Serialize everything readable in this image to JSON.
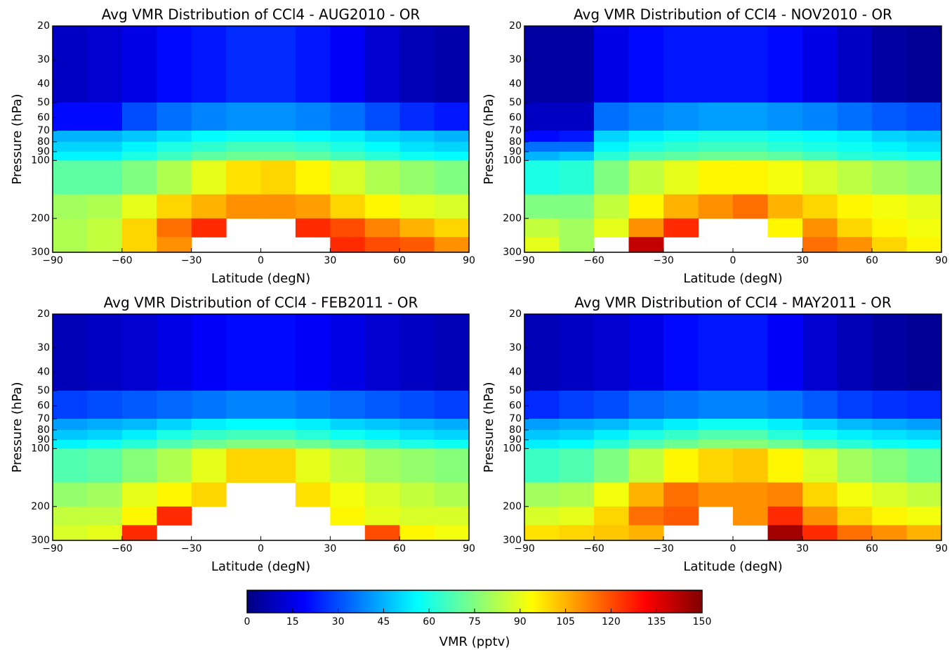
{
  "chart_data": [
    {
      "type": "heatmap",
      "title": "Avg VMR Distribution of CCl4 - AUG2010 - OR",
      "xlabel": "Latitude (degN)",
      "ylabel": "Pressure (hPa)",
      "x_bins": [
        -90,
        -75,
        -60,
        -45,
        -30,
        -15,
        0,
        15,
        30,
        45,
        60,
        75,
        90
      ],
      "y_bins": [
        20,
        50,
        70,
        80,
        90,
        100,
        150,
        200,
        250,
        300
      ],
      "values": [
        [
          10,
          12,
          15,
          20,
          22,
          25,
          25,
          22,
          18,
          12,
          8,
          6
        ],
        [
          20,
          20,
          30,
          35,
          38,
          40,
          40,
          38,
          35,
          30,
          25,
          22
        ],
        [
          45,
          45,
          48,
          52,
          56,
          58,
          58,
          56,
          54,
          50,
          48,
          45
        ],
        [
          50,
          50,
          55,
          60,
          63,
          66,
          66,
          64,
          60,
          56,
          52,
          50
        ],
        [
          55,
          55,
          60,
          65,
          70,
          72,
          72,
          70,
          66,
          62,
          58,
          56
        ],
        [
          70,
          70,
          75,
          82,
          90,
          98,
          100,
          95,
          88,
          82,
          78,
          75
        ],
        [
          80,
          82,
          90,
          100,
          105,
          110,
          110,
          108,
          100,
          95,
          90,
          88
        ],
        [
          82,
          85,
          100,
          115,
          125,
          null,
          null,
          125,
          120,
          112,
          105,
          100
        ],
        [
          82,
          85,
          100,
          110,
          null,
          null,
          null,
          null,
          125,
          120,
          118,
          110
        ]
      ],
      "xlim": [
        -90,
        90
      ],
      "ylim": [
        300,
        20
      ],
      "yscale": "log",
      "xticks": [
        {
          "value": -90,
          "label": "−90"
        },
        {
          "value": -60,
          "label": "−60"
        },
        {
          "value": -30,
          "label": "−30"
        },
        0,
        30,
        60,
        90
      ],
      "yticks": [
        20,
        30,
        40,
        50,
        60,
        70,
        80,
        90,
        100,
        200,
        300
      ],
      "colormap": "jet",
      "clim": [
        0,
        150
      ]
    },
    {
      "type": "heatmap",
      "title": "Avg VMR Distribution of CCl4 - NOV2010 - OR",
      "xlabel": "Latitude (degN)",
      "ylabel": "Pressure (hPa)",
      "x_bins": [
        -90,
        -75,
        -60,
        -45,
        -30,
        -15,
        0,
        15,
        30,
        45,
        60,
        75,
        90
      ],
      "y_bins": [
        20,
        50,
        70,
        80,
        90,
        100,
        150,
        200,
        250,
        300
      ],
      "values": [
        [
          5,
          5,
          15,
          20,
          22,
          22,
          22,
          20,
          15,
          10,
          5,
          3
        ],
        [
          10,
          10,
          35,
          38,
          40,
          42,
          42,
          40,
          38,
          35,
          32,
          30
        ],
        [
          20,
          22,
          50,
          55,
          58,
          60,
          60,
          58,
          56,
          54,
          50,
          48
        ],
        [
          35,
          35,
          55,
          60,
          63,
          65,
          65,
          62,
          60,
          58,
          55,
          52
        ],
        [
          45,
          48,
          62,
          68,
          70,
          72,
          72,
          70,
          66,
          62,
          60,
          58
        ],
        [
          60,
          62,
          75,
          85,
          90,
          95,
          95,
          92,
          88,
          84,
          80,
          78
        ],
        [
          75,
          75,
          85,
          95,
          105,
          110,
          115,
          105,
          100,
          95,
          92,
          90
        ],
        [
          85,
          80,
          90,
          110,
          125,
          null,
          null,
          95,
          110,
          100,
          95,
          92
        ],
        [
          90,
          80,
          null,
          140,
          null,
          null,
          null,
          null,
          115,
          110,
          100,
          95
        ]
      ],
      "xlim": [
        -90,
        90
      ],
      "ylim": [
        300,
        20
      ],
      "yscale": "log",
      "xticks": [
        {
          "value": -90,
          "label": "−90"
        },
        {
          "value": -60,
          "label": "−60"
        },
        {
          "value": -30,
          "label": "−30"
        },
        0,
        30,
        60,
        90
      ],
      "yticks": [
        20,
        30,
        40,
        50,
        60,
        70,
        80,
        90,
        100,
        200,
        300
      ],
      "colormap": "jet",
      "clim": [
        0,
        150
      ]
    },
    {
      "type": "heatmap",
      "title": "Avg VMR Distribution of CCl4 - FEB2011 - OR",
      "xlabel": "Latitude (degN)",
      "ylabel": "Pressure (hPa)",
      "x_bins": [
        -90,
        -75,
        -60,
        -45,
        -30,
        -15,
        0,
        15,
        30,
        45,
        60,
        75,
        90
      ],
      "y_bins": [
        20,
        50,
        70,
        80,
        90,
        100,
        150,
        200,
        250,
        300
      ],
      "values": [
        [
          8,
          10,
          12,
          15,
          18,
          20,
          20,
          18,
          15,
          12,
          10,
          8
        ],
        [
          28,
          30,
          32,
          34,
          36,
          38,
          38,
          36,
          34,
          32,
          30,
          28
        ],
        [
          42,
          44,
          46,
          50,
          54,
          56,
          56,
          54,
          50,
          48,
          46,
          44
        ],
        [
          48,
          50,
          54,
          60,
          64,
          66,
          66,
          62,
          58,
          55,
          52,
          50
        ],
        [
          55,
          58,
          62,
          68,
          72,
          75,
          75,
          72,
          68,
          64,
          60,
          58
        ],
        [
          68,
          70,
          76,
          82,
          90,
          100,
          100,
          90,
          85,
          80,
          78,
          76
        ],
        [
          78,
          80,
          90,
          95,
          100,
          null,
          null,
          98,
          92,
          88,
          85,
          82
        ],
        [
          85,
          85,
          95,
          125,
          null,
          null,
          null,
          null,
          95,
          90,
          88,
          88
        ],
        [
          88,
          90,
          125,
          null,
          null,
          null,
          null,
          null,
          null,
          120,
          95,
          92
        ]
      ],
      "xlim": [
        -90,
        90
      ],
      "ylim": [
        300,
        20
      ],
      "yscale": "log",
      "xticks": [
        {
          "value": -90,
          "label": "−90"
        },
        {
          "value": -60,
          "label": "−60"
        },
        {
          "value": -30,
          "label": "−30"
        },
        0,
        30,
        60,
        90
      ],
      "yticks": [
        20,
        30,
        40,
        50,
        60,
        70,
        80,
        90,
        100,
        200,
        300
      ],
      "colormap": "jet",
      "clim": [
        0,
        150
      ]
    },
    {
      "type": "heatmap",
      "title": "Avg VMR Distribution of CCl4 - MAY2011 - OR",
      "xlabel": "Latitude (degN)",
      "ylabel": "Pressure (hPa)",
      "x_bins": [
        -90,
        -75,
        -60,
        -45,
        -30,
        -15,
        0,
        15,
        30,
        45,
        60,
        75,
        90
      ],
      "y_bins": [
        20,
        50,
        70,
        80,
        90,
        100,
        150,
        200,
        250,
        300
      ],
      "values": [
        [
          8,
          10,
          12,
          15,
          20,
          22,
          22,
          18,
          12,
          8,
          5,
          3
        ],
        [
          25,
          28,
          30,
          34,
          36,
          38,
          38,
          36,
          32,
          28,
          26,
          25
        ],
        [
          42,
          44,
          46,
          50,
          54,
          58,
          58,
          54,
          50,
          46,
          44,
          42
        ],
        [
          48,
          50,
          54,
          60,
          64,
          68,
          68,
          62,
          58,
          54,
          52,
          50
        ],
        [
          54,
          56,
          62,
          68,
          72,
          76,
          76,
          72,
          66,
          62,
          58,
          56
        ],
        [
          65,
          68,
          75,
          85,
          95,
          100,
          102,
          95,
          88,
          80,
          76,
          72
        ],
        [
          80,
          82,
          92,
          105,
          115,
          110,
          110,
          112,
          100,
          92,
          88,
          85
        ],
        [
          88,
          90,
          100,
          115,
          118,
          null,
          110,
          125,
          110,
          100,
          95,
          92
        ],
        [
          98,
          100,
          102,
          105,
          null,
          null,
          null,
          145,
          125,
          115,
          110,
          105
        ]
      ],
      "xlim": [
        -90,
        90
      ],
      "ylim": [
        300,
        20
      ],
      "yscale": "log",
      "xticks": [
        {
          "value": -90,
          "label": "−90"
        },
        {
          "value": -60,
          "label": "−60"
        },
        {
          "value": -30,
          "label": "−30"
        },
        0,
        30,
        60,
        90
      ],
      "yticks": [
        20,
        30,
        40,
        50,
        60,
        70,
        80,
        90,
        100,
        200,
        300
      ],
      "colormap": "jet",
      "clim": [
        0,
        150
      ]
    },
    {
      "type": "colorbar",
      "label": "VMR (pptv)",
      "colormap": "jet",
      "xlim": [
        0,
        150
      ],
      "xticks": [
        0,
        15,
        30,
        45,
        60,
        75,
        90,
        105,
        120,
        135,
        150
      ]
    }
  ]
}
